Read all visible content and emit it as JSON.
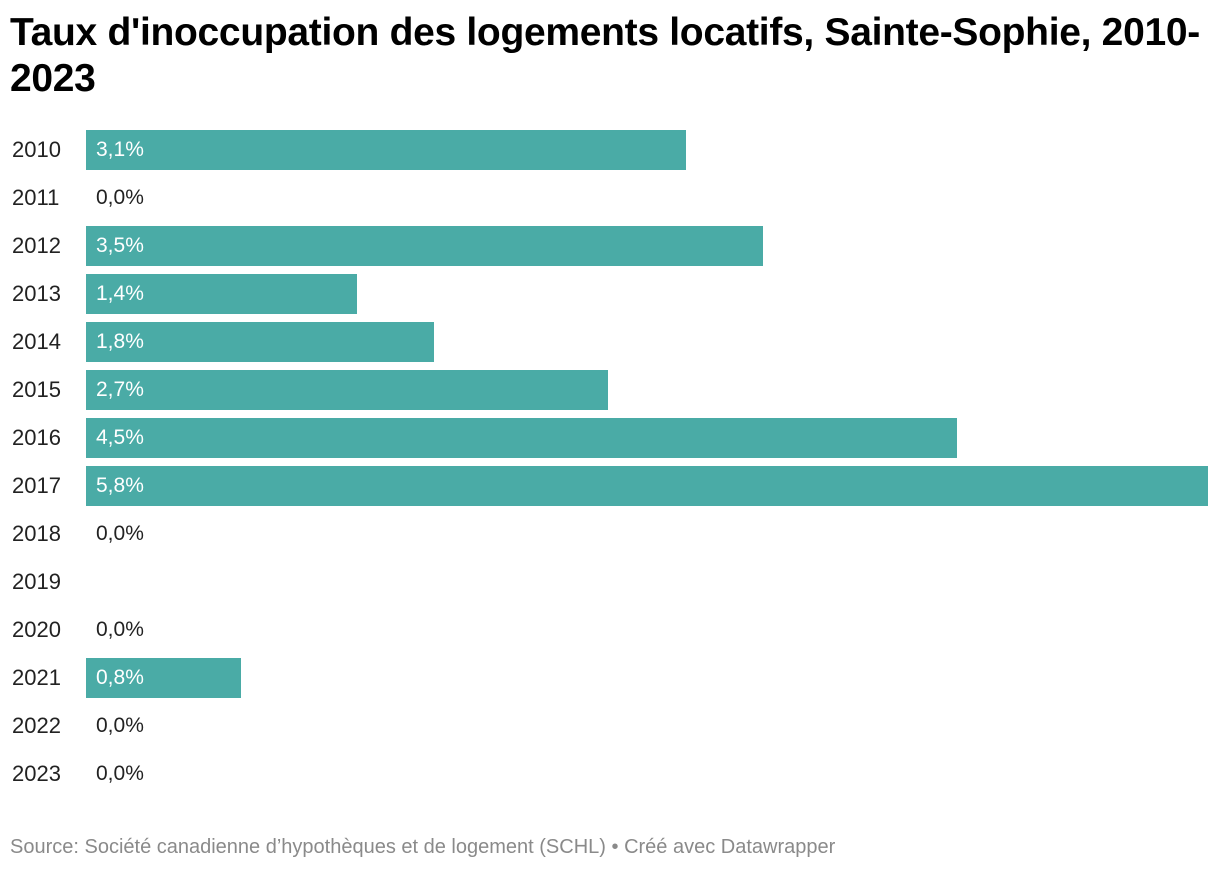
{
  "title": "Taux d'inoccupation des logements locatifs, Sainte-Sophie, 2010-2023",
  "footer": {
    "source": "Source: Société canadienne d’hypothèques et de logement (SCHL)",
    "separator": "•",
    "credit": "Créé avec Datawrapper"
  },
  "colors": {
    "bar": "#4aaba6",
    "label_inside": "#ffffff",
    "label_outside": "#222222",
    "footer": "#8a8a8a"
  },
  "chart_data": {
    "type": "bar",
    "orientation": "horizontal",
    "title": "Taux d'inoccupation des logements locatifs, Sainte-Sophie, 2010-2023",
    "categories": [
      "2010",
      "2011",
      "2012",
      "2013",
      "2014",
      "2015",
      "2016",
      "2017",
      "2018",
      "2019",
      "2020",
      "2021",
      "2022",
      "2023"
    ],
    "values": [
      3.1,
      0.0,
      3.5,
      1.4,
      1.8,
      2.7,
      4.5,
      5.8,
      0.0,
      null,
      0.0,
      0.8,
      0.0,
      0.0
    ],
    "value_labels": [
      "3,1%",
      "0,0%",
      "3,5%",
      "1,4%",
      "1,8%",
      "2,7%",
      "4,5%",
      "5,8%",
      "0,0%",
      "",
      "0,0%",
      "0,8%",
      "0,0%",
      "0,0%"
    ],
    "xlim": [
      0,
      5.8
    ],
    "grid": false,
    "legend": "none"
  }
}
